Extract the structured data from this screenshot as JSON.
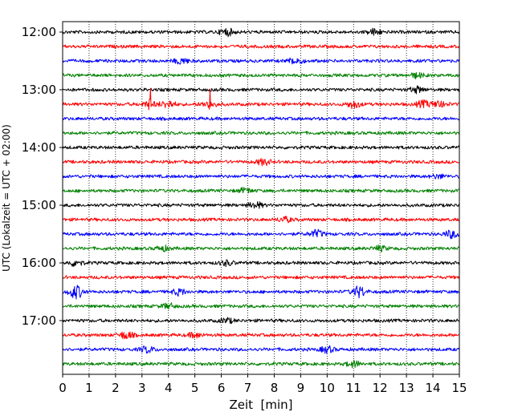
{
  "chart_data": {
    "type": "line",
    "title": "",
    "xlabel": "Zeit  [min]",
    "ylabel": "UTC (Lokalzeit = UTC + 02:00)",
    "xlim": [
      0,
      15
    ],
    "x_ticks": [
      "0",
      "1",
      "2",
      "3",
      "4",
      "5",
      "6",
      "7",
      "8",
      "9",
      "10",
      "11",
      "12",
      "13",
      "14",
      "15"
    ],
    "y_tick_labels": [
      "12:00",
      "13:00",
      "14:00",
      "15:00",
      "16:00",
      "17:00"
    ],
    "grid": "vertical dotted lines at each minute",
    "legend": "none",
    "trace_interval_min": 15,
    "series_colors": [
      "#000000",
      "#ff0000",
      "#0000ff",
      "#008000"
    ],
    "traces": [
      {
        "start": "12:00",
        "color": "#000000",
        "events": [
          {
            "t": 6.2,
            "amp": 0.3
          },
          {
            "t": 11.8,
            "amp": 0.25
          }
        ]
      },
      {
        "start": "12:15",
        "color": "#ff0000",
        "events": []
      },
      {
        "start": "12:30",
        "color": "#0000ff",
        "events": [
          {
            "t": 4.5,
            "amp": 0.25
          },
          {
            "t": 8.8,
            "amp": 0.3
          }
        ]
      },
      {
        "start": "12:45",
        "color": "#008000",
        "events": [
          {
            "t": 13.4,
            "amp": 0.2
          }
        ]
      },
      {
        "start": "13:00",
        "color": "#000000",
        "events": [
          {
            "t": 13.4,
            "amp": 0.25
          }
        ]
      },
      {
        "start": "13:15",
        "color": "#ff0000",
        "events": [
          {
            "t": 3.3,
            "amp": 1.7,
            "spike": true
          },
          {
            "t": 5.55,
            "amp": 2.0,
            "spike": true
          },
          {
            "t": 14.2,
            "amp": 0.7,
            "spike": true
          },
          {
            "t": 4.0,
            "amp": 0.3
          },
          {
            "t": 11.0,
            "amp": 0.3
          },
          {
            "t": 13.6,
            "amp": 0.25
          }
        ]
      },
      {
        "start": "13:30",
        "color": "#0000ff",
        "events": []
      },
      {
        "start": "13:45",
        "color": "#008000",
        "events": []
      },
      {
        "start": "14:00",
        "color": "#000000",
        "events": []
      },
      {
        "start": "14:15",
        "color": "#ff0000",
        "events": [
          {
            "t": 7.6,
            "amp": 0.25
          }
        ]
      },
      {
        "start": "14:30",
        "color": "#0000ff",
        "events": [
          {
            "t": 14.2,
            "amp": 0.15
          }
        ]
      },
      {
        "start": "14:45",
        "color": "#008000",
        "events": [
          {
            "t": 6.9,
            "amp": 0.2
          }
        ]
      },
      {
        "start": "15:00",
        "color": "#000000",
        "events": [
          {
            "t": 7.3,
            "amp": 0.25
          }
        ]
      },
      {
        "start": "15:15",
        "color": "#ff0000",
        "events": [
          {
            "t": 8.4,
            "amp": 0.2
          }
        ]
      },
      {
        "start": "15:30",
        "color": "#0000ff",
        "events": [
          {
            "t": 9.6,
            "amp": 0.3
          },
          {
            "t": 14.7,
            "amp": 0.3
          }
        ]
      },
      {
        "start": "15:45",
        "color": "#008000",
        "events": [
          {
            "t": 3.8,
            "amp": 0.2
          },
          {
            "t": 12.0,
            "amp": 0.2
          }
        ]
      },
      {
        "start": "16:00",
        "color": "#000000",
        "events": [
          {
            "t": 0.5,
            "amp": 0.25
          },
          {
            "t": 6.2,
            "amp": 0.2
          }
        ]
      },
      {
        "start": "16:15",
        "color": "#ff0000",
        "events": []
      },
      {
        "start": "16:30",
        "color": "#0000ff",
        "events": [
          {
            "t": 0.5,
            "amp": 0.55
          },
          {
            "t": 11.2,
            "amp": 0.45
          },
          {
            "t": 4.4,
            "amp": 0.25
          }
        ]
      },
      {
        "start": "16:45",
        "color": "#008000",
        "events": [
          {
            "t": 4.0,
            "amp": 0.2
          }
        ]
      },
      {
        "start": "17:00",
        "color": "#000000",
        "events": [
          {
            "t": 6.2,
            "amp": 0.2
          }
        ]
      },
      {
        "start": "17:15",
        "color": "#ff0000",
        "events": [
          {
            "t": 2.4,
            "amp": 0.3
          },
          {
            "t": 5.0,
            "amp": 0.2
          }
        ]
      },
      {
        "start": "17:30",
        "color": "#0000ff",
        "events": [
          {
            "t": 3.2,
            "amp": 0.25
          },
          {
            "t": 10.0,
            "amp": 0.25
          }
        ]
      },
      {
        "start": "17:45",
        "color": "#008000",
        "events": [
          {
            "t": 11.0,
            "amp": 0.25
          }
        ]
      }
    ]
  }
}
